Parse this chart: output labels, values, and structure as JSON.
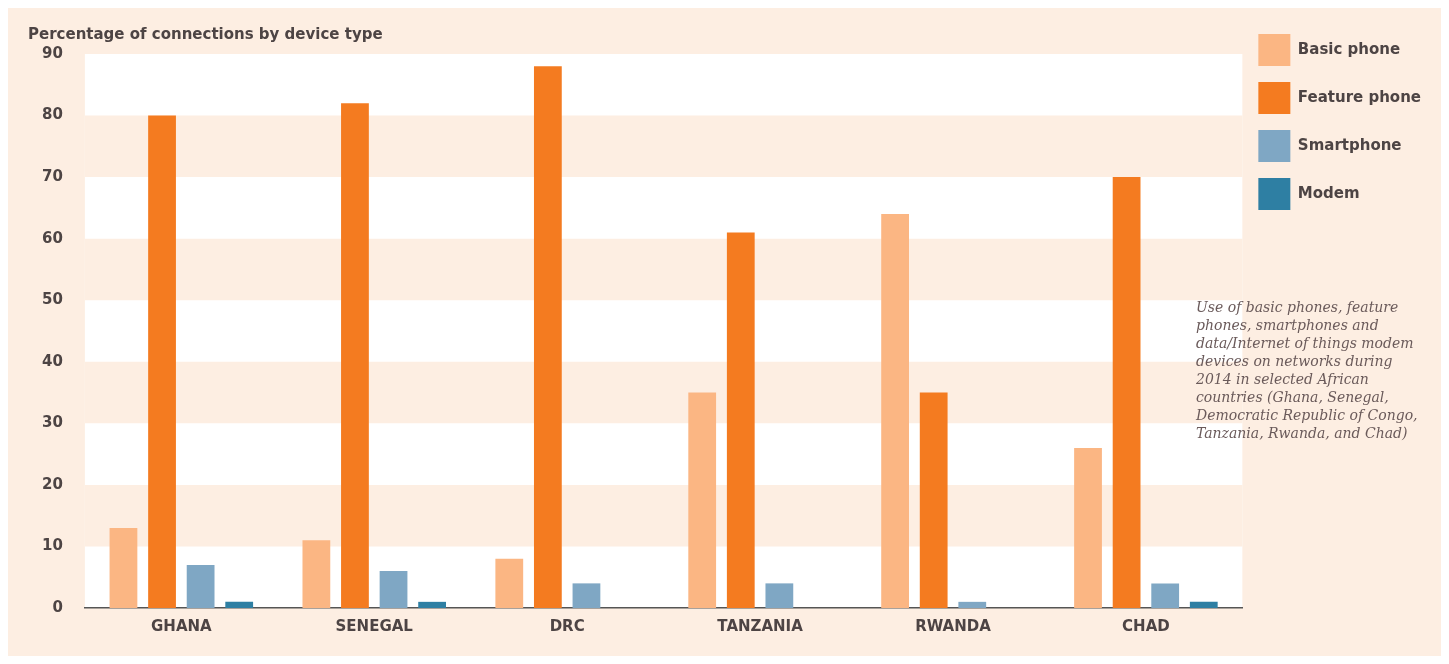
{
  "chart_data": {
    "type": "bar",
    "title": "Percentage of connections by device type",
    "categories": [
      "GHANA",
      "SENEGAL",
      "DRC",
      "TANZANIA",
      "RWANDA",
      "CHAD"
    ],
    "series": [
      {
        "name": "Basic phone",
        "color": "#fbb683",
        "values": [
          13,
          11,
          8,
          35,
          64,
          26
        ]
      },
      {
        "name": "Feature phone",
        "color": "#f47b20",
        "values": [
          80,
          82,
          88,
          61,
          35,
          70
        ]
      },
      {
        "name": "Smartphone",
        "color": "#7fa7c4",
        "values": [
          7,
          6,
          4,
          4,
          1,
          4
        ]
      },
      {
        "name": "Modem",
        "color": "#2e7fa3",
        "values": [
          1,
          1,
          0,
          0,
          0,
          1
        ]
      }
    ],
    "ylim": [
      0,
      90
    ],
    "yticks": [
      0,
      10,
      20,
      30,
      40,
      50,
      60,
      70,
      80,
      90
    ],
    "legend": "top right",
    "bands": [
      {
        "axis": "y",
        "from": 10,
        "to": 20,
        "color": "#fdeee2"
      },
      {
        "axis": "y",
        "from": 30,
        "to": 40,
        "color": "#fdeee2"
      },
      {
        "axis": "y",
        "from": 50,
        "to": 60,
        "color": "#fdeee2"
      },
      {
        "axis": "y",
        "from": 70,
        "to": 80,
        "color": "#fdeee2"
      }
    ],
    "annotations": [
      "Use of basic phones, feature phones, smartphones and data/Internet of things modem devices on networks during 2014 in selected African countries (Ghana, Senegal, Democratic Republic of Congo, Tanzania, Rwanda, and Chad)"
    ]
  }
}
